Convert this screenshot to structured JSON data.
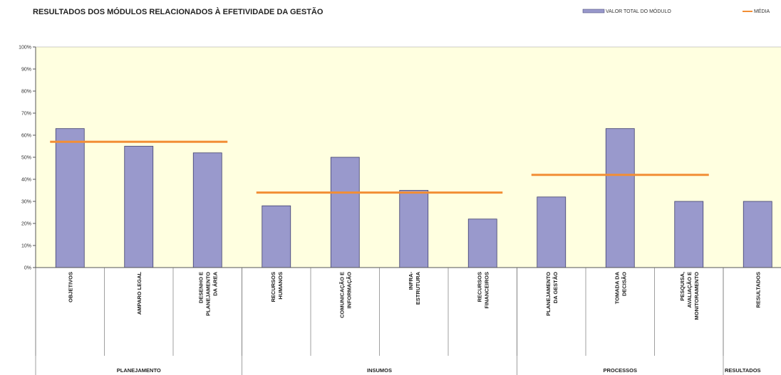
{
  "chart_data": {
    "type": "bar",
    "title": "RESULTADOS DOS MÓDULOS RELACIONADOS À EFETIVIDADE DA GESTÃO",
    "legend": {
      "placement": "top-right",
      "bar_label": "VALOR TOTAL DO MÓDULO",
      "line_label": "MÉDIA"
    },
    "ylim": [
      0,
      100
    ],
    "y_ticks": [
      "0%",
      "10%",
      "20%",
      "30%",
      "40%",
      "50%",
      "60%",
      "70%",
      "80%",
      "90%",
      "100%"
    ],
    "grid": false,
    "plot_background": "#FFFFE0",
    "colors": {
      "bar": "#9999CC",
      "bar_edge": "#3F3F6F",
      "average": "#F28E35"
    },
    "categories": [
      [
        "OBJETIVOS"
      ],
      [
        "AMPARO LEGAL"
      ],
      [
        "DESENHO E",
        "PLANEJAMENTO",
        "DA ÁREA"
      ],
      [
        "RECURSOS",
        "HUMANOS"
      ],
      [
        "COMUNICAÇÃO E",
        "INFORMAÇÃO"
      ],
      [
        "INFRA-",
        "ESTRUTURA"
      ],
      [
        "RECURSOS",
        "FINANCEIROS"
      ],
      [
        "PLANEJAMENTO",
        "DA GESTÃO"
      ],
      [
        "TOMADA DA",
        "DECISÃO"
      ],
      [
        "PESQUISA,",
        "AVALIAÇÃO E",
        "MONITORAMENTO"
      ],
      [
        "RESULTADOS"
      ]
    ],
    "values": [
      63,
      55,
      52,
      28,
      50,
      35,
      22,
      32,
      63,
      30,
      30
    ],
    "groups": [
      {
        "label": "PLANEJAMENTO",
        "start": 0,
        "end": 2,
        "average": 57
      },
      {
        "label": "INSUMOS",
        "start": 3,
        "end": 6,
        "average": 34
      },
      {
        "label": "PROCESSOS",
        "start": 7,
        "end": 9,
        "average": 42
      },
      {
        "label": "RESULTADOS",
        "start": 10,
        "end": 10,
        "average": null
      }
    ]
  }
}
